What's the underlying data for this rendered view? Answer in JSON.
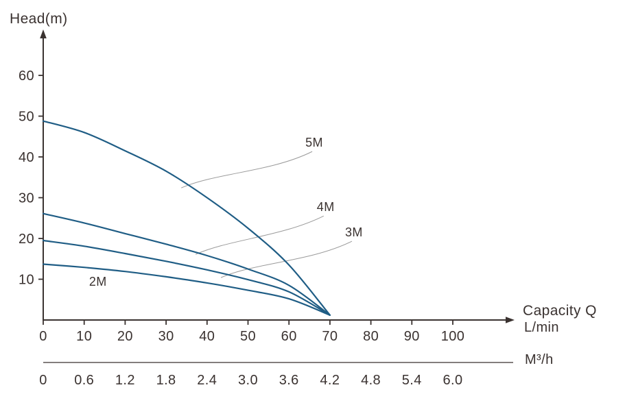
{
  "page": {
    "title": "Head(m)",
    "x_axis_title": "Capacity Q",
    "x_axis_unit": "L/min",
    "x_axis2_unit": "M³/h"
  },
  "chart_data": {
    "type": "line",
    "title": "Pump performance curves: Head vs Capacity",
    "ylabel": "Head(m)",
    "xlabel": "Capacity Q (L/min)",
    "x2label": "M³/h",
    "xlim": [
      0,
      115
    ],
    "ylim": [
      0,
      70
    ],
    "grid": false,
    "legend_position": "inline-labels",
    "x_ticks": [
      0,
      10,
      20,
      30,
      40,
      50,
      60,
      70,
      80,
      90,
      100
    ],
    "y_ticks": [
      10,
      20,
      30,
      40,
      50,
      60
    ],
    "x2_ticks": [
      "0",
      "0.6",
      "1.2",
      "1.8",
      "2.4",
      "3.0",
      "3.6",
      "4.2",
      "4.8",
      "5.4",
      "6.0"
    ],
    "series": [
      {
        "name": "5M",
        "points": [
          [
            0,
            48.8
          ],
          [
            10,
            46.0
          ],
          [
            20,
            41.5
          ],
          [
            30,
            36.5
          ],
          [
            40,
            30.0
          ],
          [
            50,
            22.5
          ],
          [
            60,
            13.5
          ],
          [
            70,
            1.2
          ]
        ]
      },
      {
        "name": "4M",
        "points": [
          [
            0,
            26.1
          ],
          [
            10,
            23.8
          ],
          [
            20,
            21.2
          ],
          [
            30,
            18.6
          ],
          [
            40,
            15.8
          ],
          [
            50,
            12.5
          ],
          [
            60,
            8.5
          ],
          [
            70,
            1.2
          ]
        ]
      },
      {
        "name": "3M",
        "points": [
          [
            0,
            19.5
          ],
          [
            10,
            18.1
          ],
          [
            20,
            16.3
          ],
          [
            30,
            14.4
          ],
          [
            40,
            12.3
          ],
          [
            50,
            9.9
          ],
          [
            60,
            6.9
          ],
          [
            70,
            1.2
          ]
        ]
      },
      {
        "name": "2M",
        "points": [
          [
            0,
            13.7
          ],
          [
            10,
            12.9
          ],
          [
            20,
            11.9
          ],
          [
            30,
            10.6
          ],
          [
            40,
            9.1
          ],
          [
            50,
            7.3
          ],
          [
            60,
            5.2
          ],
          [
            70,
            1.2
          ]
        ]
      }
    ],
    "annotations": [
      {
        "label": "5M",
        "attach": [
          33.7,
          32.4
        ],
        "label_pos": [
          64.0,
          42.5
        ],
        "leader": true
      },
      {
        "label": "4M",
        "attach": [
          37.2,
          16.1
        ],
        "label_pos": [
          66.8,
          26.7
        ],
        "leader": true
      },
      {
        "label": "3M",
        "attach": [
          43.4,
          10.4
        ],
        "label_pos": [
          73.7,
          20.5
        ],
        "leader": true
      },
      {
        "label": "2M",
        "label_pos": [
          11.2,
          8.4
        ],
        "leader": false
      }
    ],
    "colors": {
      "curve": "#1f5d85",
      "axis": "#3a3230",
      "text": "#3a3230",
      "leader": "#9a9a9a",
      "axis2": "#5a5452"
    }
  }
}
